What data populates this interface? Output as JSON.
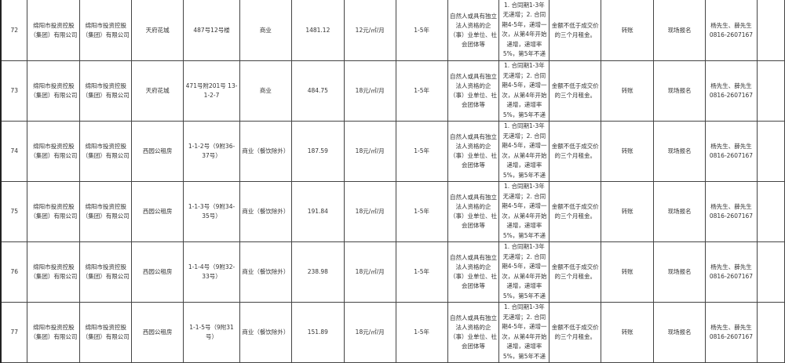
{
  "rows": [
    {
      "no": "72",
      "lessor": "绵阳市投资控股（集团）有限公司",
      "owner": "绵阳市投资控股（集团）有限公司",
      "project": "天府花城",
      "address": "487号12号楼",
      "use": "商业",
      "area": "1481.12",
      "price": "12元/㎡/月",
      "term": "1-5年",
      "qualification": "自然人或具有独立法人资格的企（事）业单位、社会团体等",
      "increase": "1. 合同期1-3年无递增；2. 合同期4-5年，递增一次，从第4年开始递增，递增率5%，第5年不递增。",
      "deposit": "金额不低于成交价的三个月租金。",
      "method": "转账",
      "signup": "现场报名",
      "contact": "杨先生、薛先生 0816-2607167",
      "extra": ""
    },
    {
      "no": "73",
      "lessor": "绵阳市投资控股（集团）有限公司",
      "owner": "绵阳市投资控股（集团）有限公司",
      "project": "天府花城",
      "address": "471号附201号 13-1-2-7",
      "use": "商业",
      "area": "484.75",
      "price": "18元/㎡/月",
      "term": "1-5年",
      "qualification": "自然人或具有独立法人资格的企（事）业单位、社会团体等",
      "increase": "1. 合同期1-3年无递增；2. 合同期4-5年，递增一次，从第4年开始递增，递增率5%，第5年不递增。",
      "deposit": "金额不低于成交价的三个月租金。",
      "method": "转账",
      "signup": "现场报名",
      "contact": "杨先生、薛先生 0816-2607167",
      "extra": ""
    },
    {
      "no": "74",
      "lessor": "绵阳市投资控股（集团）有限公司",
      "owner": "绵阳市投资控股（集团）有限公司",
      "project": "西园公租房",
      "address": "1-1-2号（9附36-37号）",
      "use": "商业（餐饮除外）",
      "area": "187.59",
      "price": "18元/㎡/月",
      "term": "1-5年",
      "qualification": "自然人或具有独立法人资格的企（事）业单位、社会团体等",
      "increase": "1. 合同期1-3年无递增；2. 合同期4-5年，递增一次，从第4年开始递增，递增率5%，第5年不递增。",
      "deposit": "金额不低于成交价的三个月租金。",
      "method": "转账",
      "signup": "现场报名",
      "contact": "杨先生、薛先生 0816-2607167",
      "extra": ""
    },
    {
      "no": "75",
      "lessor": "绵阳市投资控股（集团）有限公司",
      "owner": "绵阳市投资控股（集团）有限公司",
      "project": "西园公租房",
      "address": "1-1-3号（9附34-35号）",
      "use": "商业（餐饮除外）",
      "area": "191.84",
      "price": "18元/㎡/月",
      "term": "1-5年",
      "qualification": "自然人或具有独立法人资格的企（事）业单位、社会团体等",
      "increase": "1. 合同期1-3年无递增；2. 合同期4-5年，递增一次，从第4年开始递增，递增率5%，第5年不递增。",
      "deposit": "金额不低于成交价的三个月租金。",
      "method": "转账",
      "signup": "现场报名",
      "contact": "杨先生、薛先生 0816-2607167",
      "extra": ""
    },
    {
      "no": "76",
      "lessor": "绵阳市投资控股（集团）有限公司",
      "owner": "绵阳市投资控股（集团）有限公司",
      "project": "西园公租房",
      "address": "1-1-4号（9附32-33号）",
      "use": "商业（餐饮除外）",
      "area": "238.98",
      "price": "18元/㎡/月",
      "term": "1-5年",
      "qualification": "自然人或具有独立法人资格的企（事）业单位、社会团体等",
      "increase": "1. 合同期1-3年无递增；2. 合同期4-5年，递增一次，从第4年开始递增，递增率5%，第5年不递增。",
      "deposit": "金额不低于成交价的三个月租金。",
      "method": "转账",
      "signup": "现场报名",
      "contact": "杨先生、薛先生 0816-2607167",
      "extra": ""
    },
    {
      "no": "77",
      "lessor": "绵阳市投资控股（集团）有限公司",
      "owner": "绵阳市投资控股（集团）有限公司",
      "project": "西园公租房",
      "address": "1-1-5号（9附31号）",
      "use": "商业（餐饮除外）",
      "area": "151.89",
      "price": "18元/㎡/月",
      "term": "1-5年",
      "qualification": "自然人或具有独立法人资格的企（事）业单位、社会团体等",
      "increase": "1. 合同期1-3年无递增；2. 合同期4-5年，递增一次，从第4年开始递增，递增率5%，第5年不递增。",
      "deposit": "金额不低于成交价的三个月租金。",
      "method": "转账",
      "signup": "现场报名",
      "contact": "杨先生、薛先生 0816-2607167",
      "extra": ""
    }
  ]
}
